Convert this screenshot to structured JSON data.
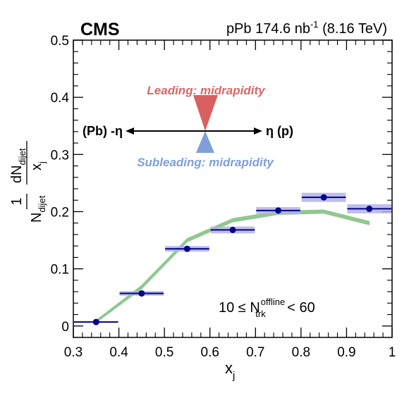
{
  "chart_data": {
    "type": "scatter",
    "experiment": "CMS",
    "dataset": {
      "system": "pPb",
      "lumi_value": "174.6",
      "lumi_unit": "nb",
      "lumi_exp": "-1",
      "energy": "(8.16 TeV)"
    },
    "xlabel": {
      "main": "x",
      "sub": "j"
    },
    "ylabel": {
      "one": "1",
      "n_main": "N",
      "n_sub": "dijet",
      "dn_main": "dN",
      "dn_sub": "dijet",
      "dx_main": "x",
      "dx_sub": "j"
    },
    "xlim": [
      0.3,
      1.0
    ],
    "ylim": [
      -0.02,
      0.5
    ],
    "xticks": [
      0.3,
      0.4,
      0.5,
      0.6,
      0.7,
      0.8,
      0.9,
      1.0
    ],
    "xtick_labels": [
      "0.3",
      "0.4",
      "0.5",
      "0.6",
      "0.7",
      "0.8",
      "0.9",
      "1"
    ],
    "yticks": [
      0,
      0.1,
      0.2,
      0.3,
      0.4,
      0.5
    ],
    "ytick_labels": [
      "0",
      "0.1",
      "0.2",
      "0.3",
      "0.4",
      "0.5"
    ],
    "series": [
      {
        "kind": "data",
        "x": [
          0.35,
          0.45,
          0.55,
          0.65,
          0.75,
          0.85,
          0.95
        ],
        "bins": [
          [
            0.3,
            0.4
          ],
          [
            0.4,
            0.5
          ],
          [
            0.5,
            0.6
          ],
          [
            0.6,
            0.7
          ],
          [
            0.7,
            0.8
          ],
          [
            0.8,
            0.9
          ],
          [
            0.9,
            1.0
          ]
        ],
        "y": [
          0.007,
          0.057,
          0.135,
          0.168,
          0.202,
          0.225,
          0.205
        ],
        "syst": [
          0.0,
          0.004,
          0.005,
          0.006,
          0.006,
          0.008,
          0.008
        ],
        "color": "#00008b",
        "band_color": "#b3b3e6"
      },
      {
        "kind": "model-band",
        "x": [
          0.35,
          0.45,
          0.55,
          0.65,
          0.75,
          0.85,
          0.95
        ],
        "y": [
          0.008,
          0.068,
          0.15,
          0.185,
          0.198,
          0.2,
          0.18
        ],
        "half_width": [
          0.002,
          0.003,
          0.003,
          0.003,
          0.003,
          0.003,
          0.003
        ],
        "color": "#90c890"
      }
    ],
    "annotations": {
      "leading": "Leading: midrapidity",
      "subleading": "Subleading: midrapidity",
      "left_arrow": "(Pb) -η",
      "right_arrow": "η (p)",
      "leading_color": "#d96666",
      "subleading_color": "#7f9fd9"
    },
    "selection": {
      "prefix": "10 ≤ N",
      "sup": "offline",
      "sub": "trk",
      "suffix": "< 60"
    }
  }
}
